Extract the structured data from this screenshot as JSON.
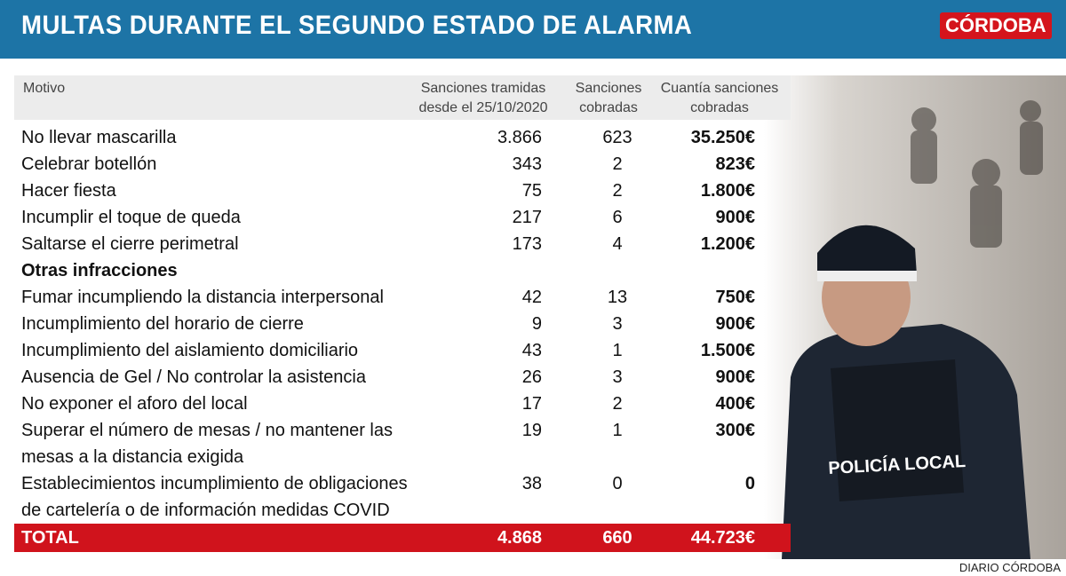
{
  "header": {
    "title": "MULTAS DURANTE EL SEGUNDO ESTADO DE ALARMA",
    "brand": "CÓRDOBA"
  },
  "table": {
    "columns": [
      [
        "Motivo"
      ],
      [
        "Sanciones tramidas",
        "desde el 25/10/2020"
      ],
      [
        "Sanciones",
        "cobradas"
      ],
      [
        "Cuantía sanciones",
        "cobradas"
      ]
    ],
    "rows": [
      {
        "motivo": [
          "No llevar mascarilla"
        ],
        "tramitadas": "3.866",
        "cobradas": "623",
        "cuantia": "35.250€"
      },
      {
        "motivo": [
          "Celebrar botellón"
        ],
        "tramitadas": "343",
        "cobradas": "2",
        "cuantia": "823€"
      },
      {
        "motivo": [
          "Hacer fiesta"
        ],
        "tramitadas": "75",
        "cobradas": "2",
        "cuantia": "1.800€"
      },
      {
        "motivo": [
          "Incumplir el toque de queda"
        ],
        "tramitadas": "217",
        "cobradas": "6",
        "cuantia": "900€"
      },
      {
        "motivo": [
          "Saltarse el cierre perimetral"
        ],
        "tramitadas": "173",
        "cobradas": "4",
        "cuantia": "1.200€"
      },
      {
        "section": "Otras infracciones"
      },
      {
        "motivo": [
          "Fumar incumpliendo la distancia interpersonal"
        ],
        "tramitadas": "42",
        "cobradas": "13",
        "cuantia": "750€"
      },
      {
        "motivo": [
          "Incumplimiento del horario de cierre"
        ],
        "tramitadas": "9",
        "cobradas": "3",
        "cuantia": "900€"
      },
      {
        "motivo": [
          "Incumplimiento del aislamiento domiciliario"
        ],
        "tramitadas": "43",
        "cobradas": "1",
        "cuantia": "1.500€"
      },
      {
        "motivo": [
          "Ausencia de Gel / No controlar la asistencia"
        ],
        "tramitadas": "26",
        "cobradas": "3",
        "cuantia": "900€"
      },
      {
        "motivo": [
          "No exponer el aforo del local"
        ],
        "tramitadas": "17",
        "cobradas": "2",
        "cuantia": "400€"
      },
      {
        "motivo": [
          "Superar el número de mesas / no mantener las",
          "mesas a la distancia exigida"
        ],
        "tramitadas": "19",
        "cobradas": "1",
        "cuantia": "300€"
      },
      {
        "motivo": [
          "Establecimientos incumplimiento de obligaciones",
          "de cartelería o de información medidas COVID"
        ],
        "tramitadas": "38",
        "cobradas": "0",
        "cuantia": "0"
      }
    ],
    "total": {
      "motivo": "TOTAL",
      "tramitadas": "4.868",
      "cobradas": "660",
      "cuantia": "44.723€"
    }
  },
  "photo": {
    "badge": "POLICÍA LOCAL"
  },
  "footer": {
    "credit": "DIARIO CÓRDOBA"
  }
}
